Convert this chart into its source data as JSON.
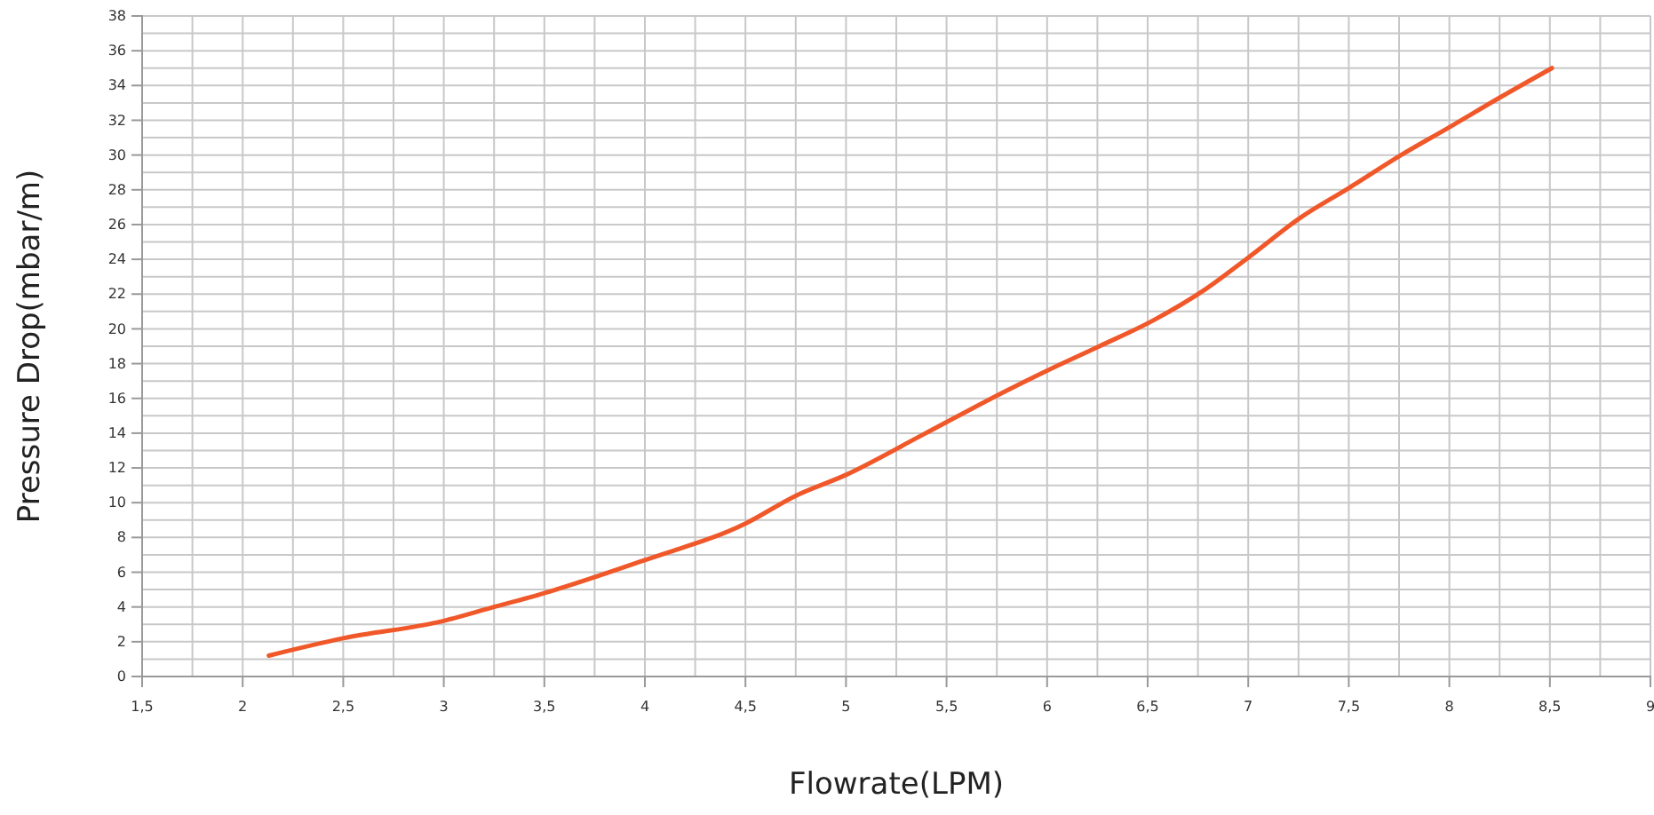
{
  "chart_data": {
    "type": "line",
    "xlabel": "Flowrate(LPM)",
    "ylabel": "Pressure Drop(mbar/m)",
    "series": [
      {
        "color": "#f0582a",
        "x": [
          2.13,
          2.5,
          3.0,
          3.25,
          3.53,
          4.0,
          4.5,
          4.75,
          5.0,
          5.38,
          5.79,
          6.0,
          6.26,
          6.53,
          6.79,
          7.0,
          7.26,
          7.5,
          7.76,
          8.0,
          8.25,
          8.51
        ],
        "values": [
          1.2,
          2.2,
          3.2,
          4.0,
          4.9,
          6.7,
          8.8,
          10.4,
          11.6,
          13.9,
          16.4,
          17.6,
          19.0,
          20.5,
          22.3,
          24.1,
          26.4,
          28.1,
          30.0,
          31.6,
          33.3,
          35.0
        ]
      }
    ],
    "xlim": [
      1.5,
      9
    ],
    "xticks": [
      {
        "value": 1.5,
        "label": "1,5"
      },
      2,
      {
        "value": 2.5,
        "label": "2,5"
      },
      3,
      {
        "value": 3.5,
        "label": "3,5"
      },
      4,
      {
        "value": 4.5,
        "label": "4,5"
      },
      5,
      {
        "value": 5.5,
        "label": "5,5"
      },
      6,
      {
        "value": 6.5,
        "label": "6,5"
      },
      7,
      {
        "value": 7.5,
        "label": "7,5"
      },
      8,
      {
        "value": 8.5,
        "label": "8,5"
      },
      9
    ],
    "ylim": [
      0,
      38
    ],
    "yticks": [
      0,
      2,
      4,
      6,
      8,
      10,
      12,
      14,
      16,
      18,
      20,
      22,
      24,
      26,
      28,
      30,
      32,
      34,
      36,
      38
    ],
    "grid": true,
    "marker": "none",
    "line_style": "solid"
  }
}
